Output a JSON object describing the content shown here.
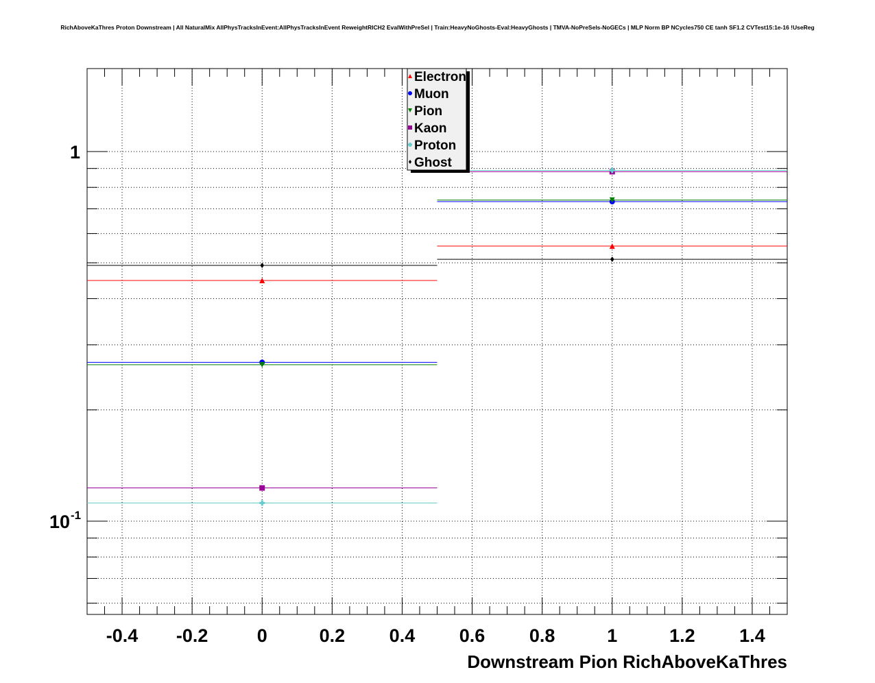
{
  "chart_data": {
    "type": "scatter",
    "title": "RichAboveKaThres Proton Downstream | All NaturalMix AllPhysTracksInEvent:AllPhysTracksInEvent ReweightRICH2 EvalWithPreSel | Train:HeavyNoGhosts-Eval:HeavyGhosts | TMVA-NoPreSels-NoGECs | MLP Norm BP NCycles750 CE tanh SF1.2 CVTest15:1e-16 !UseReg",
    "xlabel": "Downstream Pion RichAboveKaThres",
    "ylabel": "",
    "xlim": [
      -0.5,
      1.5
    ],
    "ylim": [
      0.056,
      1.68
    ],
    "yscale": "log",
    "grid": true,
    "legend_position": "top-center",
    "x_ticks": [
      "-0.4",
      "-0.2",
      "0",
      "0.2",
      "0.4",
      "0.6",
      "0.8",
      "1",
      "1.2",
      "1.4"
    ],
    "y_ticks": [
      {
        "value": 1,
        "label": "1"
      },
      {
        "value": 0.1,
        "base": "10",
        "exp": "-1"
      }
    ],
    "x": [
      0,
      1
    ],
    "bin_halfwidth": 0.5,
    "series": [
      {
        "name": "Electron",
        "color": "#ff0000",
        "marker": "triangle-up",
        "values": [
          0.448,
          0.555
        ]
      },
      {
        "name": "Muon",
        "color": "#0000ff",
        "marker": "circle",
        "values": [
          0.269,
          0.732
        ]
      },
      {
        "name": "Pion",
        "color": "#008000",
        "marker": "triangle-down",
        "values": [
          0.265,
          0.739
        ]
      },
      {
        "name": "Kaon",
        "color": "#990099",
        "marker": "square",
        "values": [
          0.123,
          0.882
        ]
      },
      {
        "name": "Proton",
        "color": "#66cccc",
        "marker": "cross",
        "values": [
          0.112,
          0.889
        ]
      },
      {
        "name": "Ghost",
        "color": "#000000",
        "marker": "diamond",
        "values": [
          0.492,
          0.511
        ]
      }
    ]
  }
}
